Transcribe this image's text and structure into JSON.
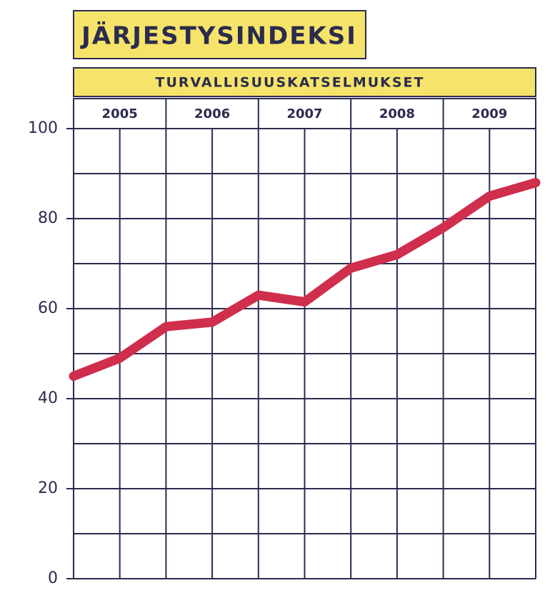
{
  "chart_data": {
    "type": "line",
    "title": "JÄRJESTYSINDEKSI",
    "subtitle": "TURVALLISUUSKATSELMUKSET",
    "year_labels": [
      "2005",
      "2006",
      "2007",
      "2008",
      "2009"
    ],
    "x": [
      2005,
      2005.5,
      2006,
      2006.5,
      2007,
      2007.5,
      2008,
      2008.5,
      2009,
      2009.5,
      2010
    ],
    "series": [
      {
        "name": "Järjestysindeksi",
        "color": "#cf2e4c",
        "values": [
          45,
          49,
          56,
          57,
          63,
          61.5,
          69,
          72,
          78,
          85,
          88
        ]
      }
    ],
    "xlim": [
      2005,
      2010
    ],
    "ylim": [
      0,
      100
    ],
    "yticks": [
      0,
      20,
      40,
      60,
      80,
      100
    ],
    "ygrid": [
      0,
      10,
      20,
      30,
      40,
      50,
      60,
      70,
      80,
      90,
      100
    ]
  }
}
